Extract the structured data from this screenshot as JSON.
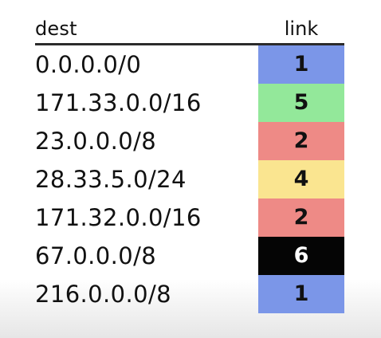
{
  "table": {
    "headers": {
      "dest": "dest",
      "link": "link"
    },
    "rows": [
      {
        "dest": "0.0.0.0/0",
        "link": "1",
        "color": "#7b96e8",
        "text_color": "#111111"
      },
      {
        "dest": "171.33.0.0/16",
        "link": "5",
        "color": "#93e89a",
        "text_color": "#111111"
      },
      {
        "dest": "23.0.0.0/8",
        "link": "2",
        "color": "#ee8a86",
        "text_color": "#111111"
      },
      {
        "dest": "28.33.5.0/24",
        "link": "4",
        "color": "#fae590",
        "text_color": "#111111"
      },
      {
        "dest": "171.32.0.0/16",
        "link": "2",
        "color": "#ee8a86",
        "text_color": "#111111"
      },
      {
        "dest": "67.0.0.0/8",
        "link": "6",
        "color": "#050505",
        "text_color": "#ffffff"
      },
      {
        "dest": "216.0.0.0/8",
        "link": "1",
        "color": "#7b96e8",
        "text_color": "#111111"
      }
    ]
  }
}
